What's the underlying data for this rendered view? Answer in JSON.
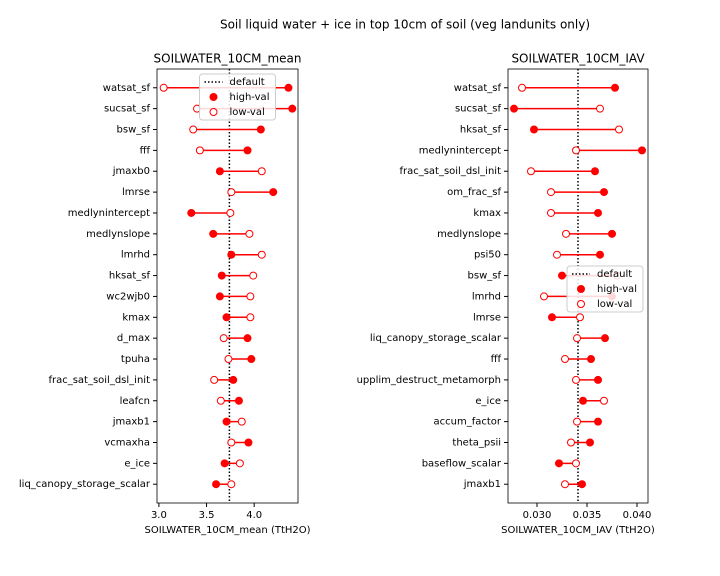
{
  "title": "Soil liquid water + ice in top 10cm of soil (veg landunits only)",
  "chart_data": [
    {
      "type": "dumbbell",
      "title": "SOILWATER_10CM_mean",
      "x_label": "SOILWATER_10CM_mean (TtH2O)",
      "categories": [
        "watsat_sf",
        "sucsat_sf",
        "bsw_sf",
        "fff",
        "jmaxb0",
        "lmrse",
        "medlynintercept",
        "medlynslope",
        "lmrhd",
        "hksat_sf",
        "wc2wjb0",
        "kmax",
        "d_max",
        "tpuha",
        "frac_sat_soil_dsl_init",
        "leafcn",
        "jmaxb1",
        "vcmaxha",
        "e_ice",
        "liq_canopy_storage_scalar"
      ],
      "series": [
        {
          "name": "high-val",
          "color": "#ff0000",
          "marker": "filled",
          "values": [
            4.36,
            4.4,
            4.07,
            3.93,
            3.64,
            4.2,
            3.34,
            3.57,
            3.76,
            3.66,
            3.64,
            3.71,
            3.93,
            3.97,
            3.78,
            3.84,
            3.71,
            3.94,
            3.69,
            3.6
          ]
        },
        {
          "name": "low-val",
          "color": "#ff0000",
          "marker": "open",
          "values": [
            3.05,
            3.4,
            3.36,
            3.43,
            4.08,
            3.76,
            3.75,
            3.95,
            4.08,
            3.99,
            3.96,
            3.96,
            3.68,
            3.73,
            3.58,
            3.65,
            3.87,
            3.76,
            3.85,
            3.76
          ]
        }
      ],
      "reference": {
        "name": "default",
        "value": 3.74,
        "color": "#000000"
      },
      "xlim": [
        2.98,
        4.46
      ],
      "xticks": [
        {
          "value": 3,
          "label": "3.0"
        },
        3.5,
        {
          "value": 4,
          "label": "4.0"
        }
      ],
      "legend": "upper center"
    },
    {
      "type": "dumbbell",
      "title": "SOILWATER_10CM_IAV",
      "x_label": "SOILWATER_10CM_IAV (TtH2O)",
      "categories": [
        "watsat_sf",
        "sucsat_sf",
        "hksat_sf",
        "medlynintercept",
        "frac_sat_soil_dsl_init",
        "om_frac_sf",
        "kmax",
        "medlynslope",
        "psi50",
        "bsw_sf",
        "lmrhd",
        "lmrse",
        "liq_canopy_storage_scalar",
        "fff",
        "upplim_destruct_metamorph",
        "e_ice",
        "accum_factor",
        "theta_psii",
        "baseflow_scalar",
        "jmaxb1"
      ],
      "series": [
        {
          "name": "high-val",
          "color": "#ff0000",
          "marker": "filled",
          "values": [
            0.0378,
            0.0277,
            0.0297,
            0.0405,
            0.0358,
            0.0367,
            0.0361,
            0.0375,
            0.0363,
            0.0325,
            0.0375,
            0.0315,
            0.0368,
            0.0354,
            0.0361,
            0.0346,
            0.0361,
            0.0353,
            0.0322,
            0.0345
          ]
        },
        {
          "name": "low-val",
          "color": "#ff0000",
          "marker": "open",
          "values": [
            0.0285,
            0.0363,
            0.0382,
            0.0339,
            0.0294,
            0.0314,
            0.0314,
            0.0329,
            0.032,
            0.038,
            0.0307,
            0.0343,
            0.034,
            0.0328,
            0.0339,
            0.0367,
            0.034,
            0.0334,
            0.0339,
            0.0328
          ]
        }
      ],
      "reference": {
        "name": "default",
        "value": 0.0341,
        "color": "#000000"
      },
      "xlim": [
        0.0271,
        0.0411
      ],
      "xticks": [
        {
          "value": 0.03,
          "label": "0.030"
        },
        0.035,
        {
          "value": 0.04,
          "label": "0.040"
        }
      ],
      "legend": "center right"
    }
  ]
}
